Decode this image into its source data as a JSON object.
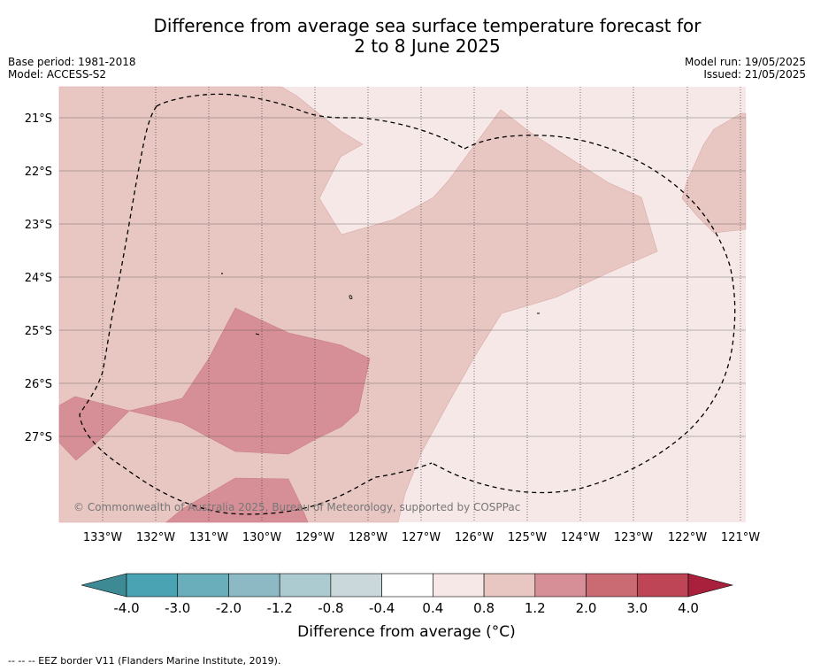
{
  "title": {
    "line1": "Difference from average sea surface temperature forecast for",
    "line2": "2 to 8 June 2025"
  },
  "meta": {
    "base_period": "Base period: 1981-2018",
    "model": "Model: ACCESS-S2",
    "model_run": "Model run: 19/05/2025",
    "issued": "Issued: 21/05/2025"
  },
  "map": {
    "lat_labels": [
      "21°S",
      "22°S",
      "23°S",
      "24°S",
      "25°S",
      "26°S",
      "27°S"
    ],
    "lon_labels": [
      "133°W",
      "132°W",
      "131°W",
      "130°W",
      "129°W",
      "128°W",
      "127°W",
      "126°W",
      "125°W",
      "124°W",
      "123°W",
      "122°W",
      "121°W"
    ],
    "copyright": "© Commonwealth of Australia 2025, Bureau of Meteorology, supported by COSPPac",
    "category_colors": {
      "0.4 to 0.8": "#f5e8e6",
      "0.8 to 1.2": "#e8c6c2",
      "1.2 to 2.0": "#d78f97"
    },
    "eez_style": "dashed black"
  },
  "colorbar": {
    "labels": [
      "-4.0",
      "-3.0",
      "-2.0",
      "-1.2",
      "-0.8",
      "-0.4",
      "0.4",
      "0.8",
      "1.2",
      "2.0",
      "3.0",
      "4.0"
    ],
    "colors": [
      "#3e8a94",
      "#4aa3b3",
      "#6aaebc",
      "#8db9c5",
      "#abcbd0",
      "#cbd8db",
      "#ffffff",
      "#f5e8e6",
      "#e8c6c2",
      "#d78f97",
      "#ca6a73",
      "#bd4556",
      "#a8203c"
    ],
    "title": "Difference from average (°C)"
  },
  "footer": "--  --  -- EEZ border V11 (Flanders Marine Institute, 2019)."
}
